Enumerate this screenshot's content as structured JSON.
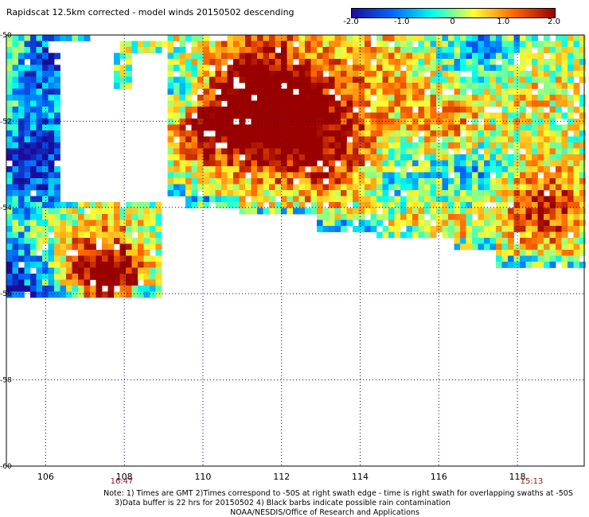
{
  "title": "Rapidscat 12.5km corrected - model winds 20150502 descending",
  "colorbar": {
    "labels": [
      "-2.0",
      "-1.0",
      "0",
      "1.0",
      "2.0"
    ],
    "values": [
      -2.0,
      -1.0,
      0,
      1.0,
      2.0
    ],
    "colors": [
      "#1a0d9c",
      "#0066ff",
      "#00ffee",
      "#ffff33",
      "#ff6600",
      "#990000"
    ]
  },
  "map": {
    "lat_labels": [
      "-50",
      "-52",
      "-54",
      "-56",
      "-58",
      "-60"
    ],
    "lat_values": [
      -50,
      -52,
      -54,
      -56,
      -58,
      -60
    ],
    "lon_labels": [
      "106",
      "108",
      "110",
      "112",
      "114",
      "116",
      "118"
    ],
    "lon_values": [
      106,
      108,
      110,
      112,
      114,
      116,
      118
    ],
    "lat_range": [
      -60,
      -50
    ],
    "lon_range": [
      105,
      119.7
    ],
    "grid": "dotted"
  },
  "times": [
    {
      "label": "16:47",
      "lon": 108
    },
    {
      "label": "15:13",
      "lon": 119
    }
  ],
  "notes": {
    "line1": "Note: 1) Times are GMT 2)Times correspond to -50S at right swath edge - time is right swath for overlapping swaths at -50S",
    "line2": "3)Data buffer is 22 hrs for 20150502 4) Black barbs indicate possible rain contamination",
    "line3": "NOAA/NESDIS/Office of Research and Applications"
  }
}
